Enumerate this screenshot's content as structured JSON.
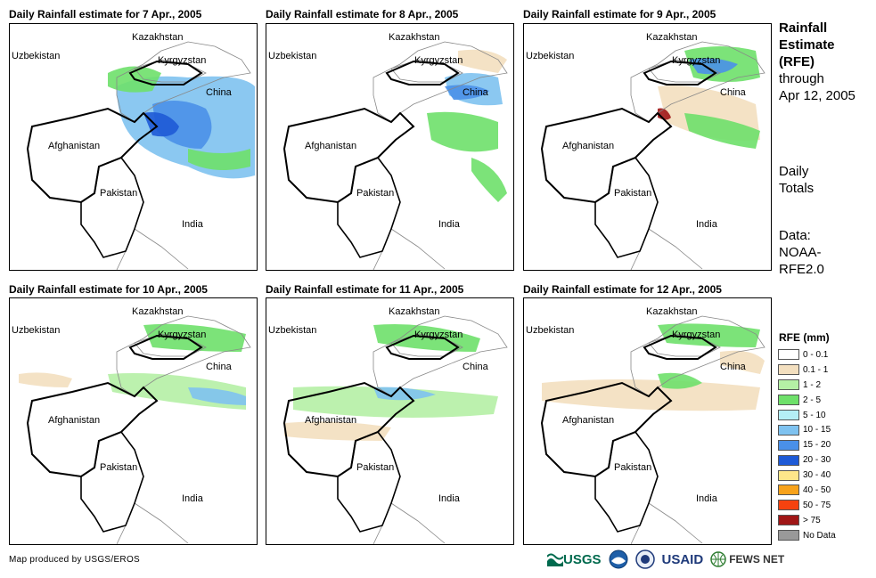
{
  "panels": [
    {
      "title": "Daily Rainfall estimate for 7 Apr., 2005"
    },
    {
      "title": "Daily Rainfall estimate for 8 Apr., 2005"
    },
    {
      "title": "Daily Rainfall estimate for 9 Apr., 2005"
    },
    {
      "title": "Daily Rainfall estimate for 10 Apr., 2005"
    },
    {
      "title": "Daily Rainfall estimate for 11 Apr., 2005"
    },
    {
      "title": "Daily Rainfall estimate for 12 Apr., 2005"
    }
  ],
  "map_labels": {
    "kazakhstan": "Kazakhstan",
    "uzbekistan": "Uzbekistan",
    "kyrgyzstan": "Kyrgyzstan",
    "china": "China",
    "afghanistan": "Afghanistan",
    "pakistan": "Pakistan",
    "india": "India"
  },
  "side": {
    "title_bold_1": "Rainfall",
    "title_bold_2": "Estimate",
    "title_bold_3": "(RFE)",
    "through_1": "through",
    "through_2": "Apr 12, 2005",
    "daily_1": "Daily",
    "daily_2": "Totals",
    "data_1": "Data:",
    "data_2": "NOAA-",
    "data_3": "RFE2.0"
  },
  "legend": {
    "title": "RFE (mm)",
    "items": [
      {
        "label": "0 - 0.1",
        "color": "#ffffff"
      },
      {
        "label": "0.1 - 1",
        "color": "#f3dfbf"
      },
      {
        "label": "1 - 2",
        "color": "#b5f0a5"
      },
      {
        "label": "2 - 5",
        "color": "#6ee06a"
      },
      {
        "label": "5 - 10",
        "color": "#b4eef5"
      },
      {
        "label": "10 - 15",
        "color": "#7ec2f0"
      },
      {
        "label": "15 - 20",
        "color": "#4a90e8"
      },
      {
        "label": "20 - 30",
        "color": "#1e5ad6"
      },
      {
        "label": "30 - 40",
        "color": "#fde68a"
      },
      {
        "label": "40 - 50",
        "color": "#f7a21b"
      },
      {
        "label": "50 - 75",
        "color": "#f5420f"
      },
      {
        "label": "> 75",
        "color": "#a01616"
      },
      {
        "label": "No Data",
        "color": "#999999"
      }
    ]
  },
  "footer": {
    "credit": "Map produced by USGS/EROS",
    "usgs": "USGS",
    "usaid": "USAID",
    "fewsnet": "FEWS NET"
  }
}
